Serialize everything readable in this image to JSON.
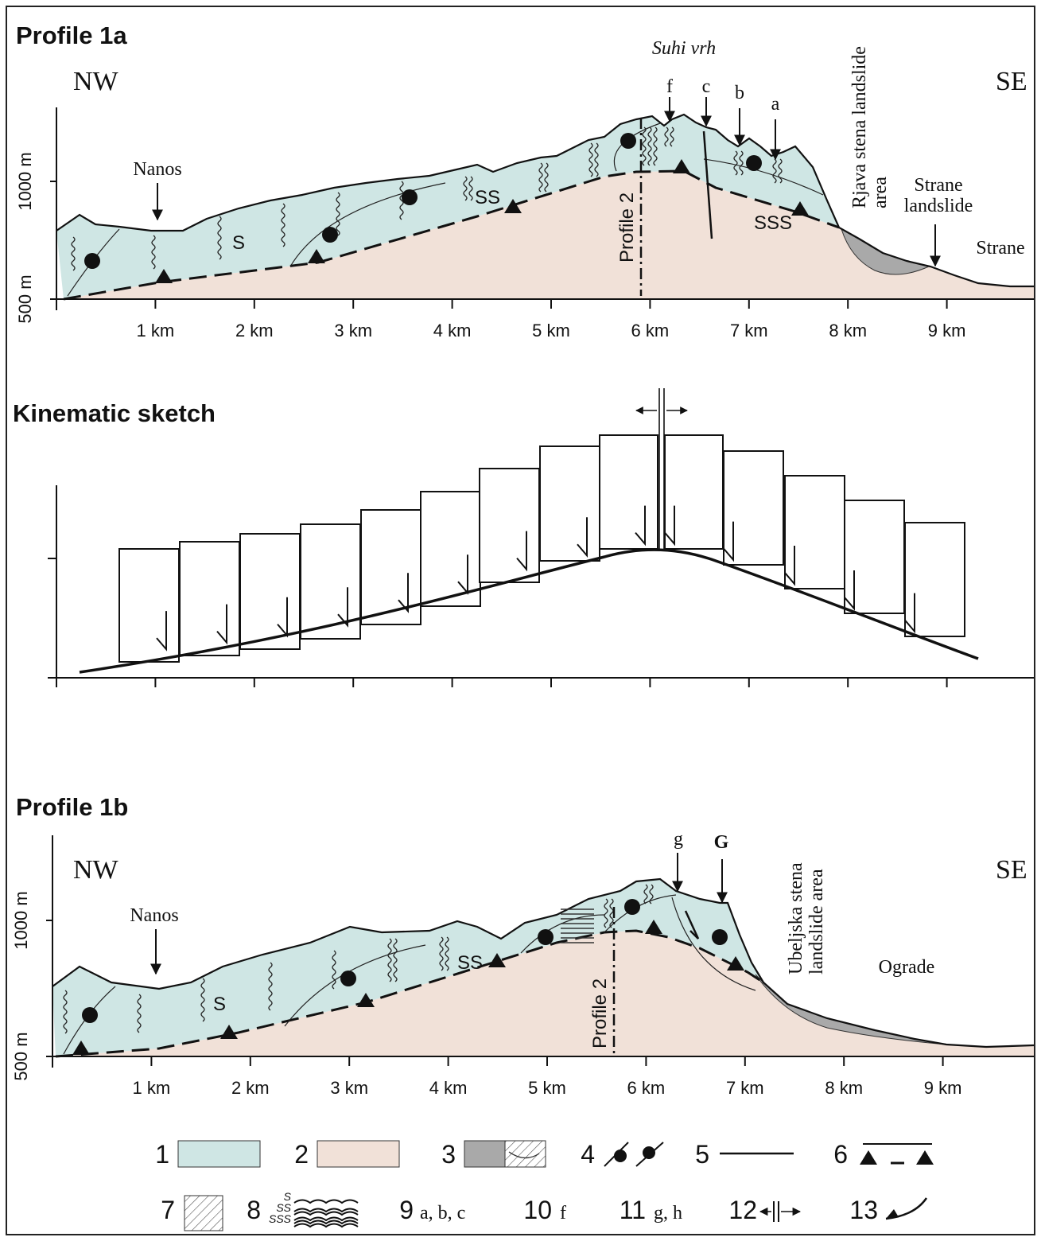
{
  "profile_1a": {
    "title": "Profile 1a",
    "left_direction": "NW",
    "right_direction": "SE",
    "summit": "Suhi vrh",
    "y_axis_labels": [
      "1000 m",
      "500 m"
    ],
    "x_axis_labels": [
      "1 km",
      "2 km",
      "3 km",
      "4 km",
      "5 km",
      "6 km",
      "7 km",
      "8 km",
      "9 km"
    ],
    "nanos": "Nanos",
    "landslide_area": [
      "Rjava stena landslide",
      "area"
    ],
    "strane_landslide": [
      "Strane",
      "landslide"
    ],
    "strane": "Strane",
    "profile_marker": "Profile 2",
    "arrow_labels": [
      "f",
      "c",
      "b",
      "a"
    ],
    "zone_labels": [
      "S",
      "SS",
      "SSS"
    ]
  },
  "kinematic_sketch": {
    "title": "Kinematic sketch"
  },
  "profile_1b": {
    "title": "Profile 1b",
    "left_direction": "NW",
    "right_direction": "SE",
    "y_axis_labels": [
      "1000 m",
      "500 m"
    ],
    "x_axis_labels": [
      "1 km",
      "2 km",
      "3 km",
      "4 km",
      "5 km",
      "6 km",
      "7 km",
      "8 km",
      "9 km"
    ],
    "nanos": "Nanos",
    "landslide_area": [
      "Ubeljska stena",
      "landslide area"
    ],
    "ograde": "Ograde",
    "profile_marker": "Profile 2",
    "arrow_labels": [
      "g",
      "G"
    ],
    "zone_labels": [
      "S",
      "SS"
    ]
  },
  "legend": {
    "items": [
      {
        "number": "1"
      },
      {
        "number": "2"
      },
      {
        "number": "3"
      },
      {
        "number": "4"
      },
      {
        "number": "5"
      },
      {
        "number": "6"
      },
      {
        "number": "7"
      },
      {
        "number": "8",
        "labels": [
          "S",
          "SS",
          "SSS"
        ]
      },
      {
        "number": "9",
        "text": "a, b, c"
      },
      {
        "number": "10",
        "text": "f"
      },
      {
        "number": "11",
        "text": "g, h"
      },
      {
        "number": "12"
      },
      {
        "number": "13"
      }
    ]
  }
}
